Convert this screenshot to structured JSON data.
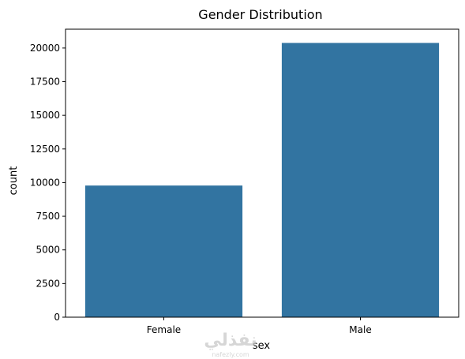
{
  "chart_data": {
    "type": "bar",
    "title": "Gender Distribution",
    "xlabel": "sex",
    "ylabel": "count",
    "categories": [
      "Female",
      "Male"
    ],
    "values": [
      9782,
      20380
    ],
    "ylim": [
      0,
      21400
    ],
    "yticks": [
      0,
      2500,
      5000,
      7500,
      10000,
      12500,
      15000,
      17500,
      20000
    ],
    "grid": false,
    "bar_color": "#3274a1"
  },
  "watermark": {
    "logo_text": "نفذلي",
    "site": "nafezly.com"
  }
}
